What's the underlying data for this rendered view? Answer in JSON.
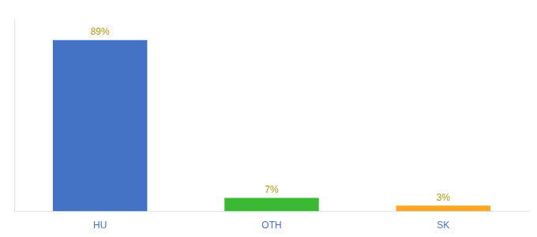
{
  "chart_data": {
    "type": "bar",
    "categories": [
      "HU",
      "OTH",
      "SK"
    ],
    "values": [
      89,
      7,
      3
    ],
    "value_labels": [
      "89%",
      "7%",
      "3%"
    ],
    "data_labels": true,
    "colors": [
      "#4472c4",
      "#3cb934",
      "#ffa726"
    ],
    "ylim": [
      0,
      100
    ],
    "grid": false,
    "tick_labels": "x"
  }
}
